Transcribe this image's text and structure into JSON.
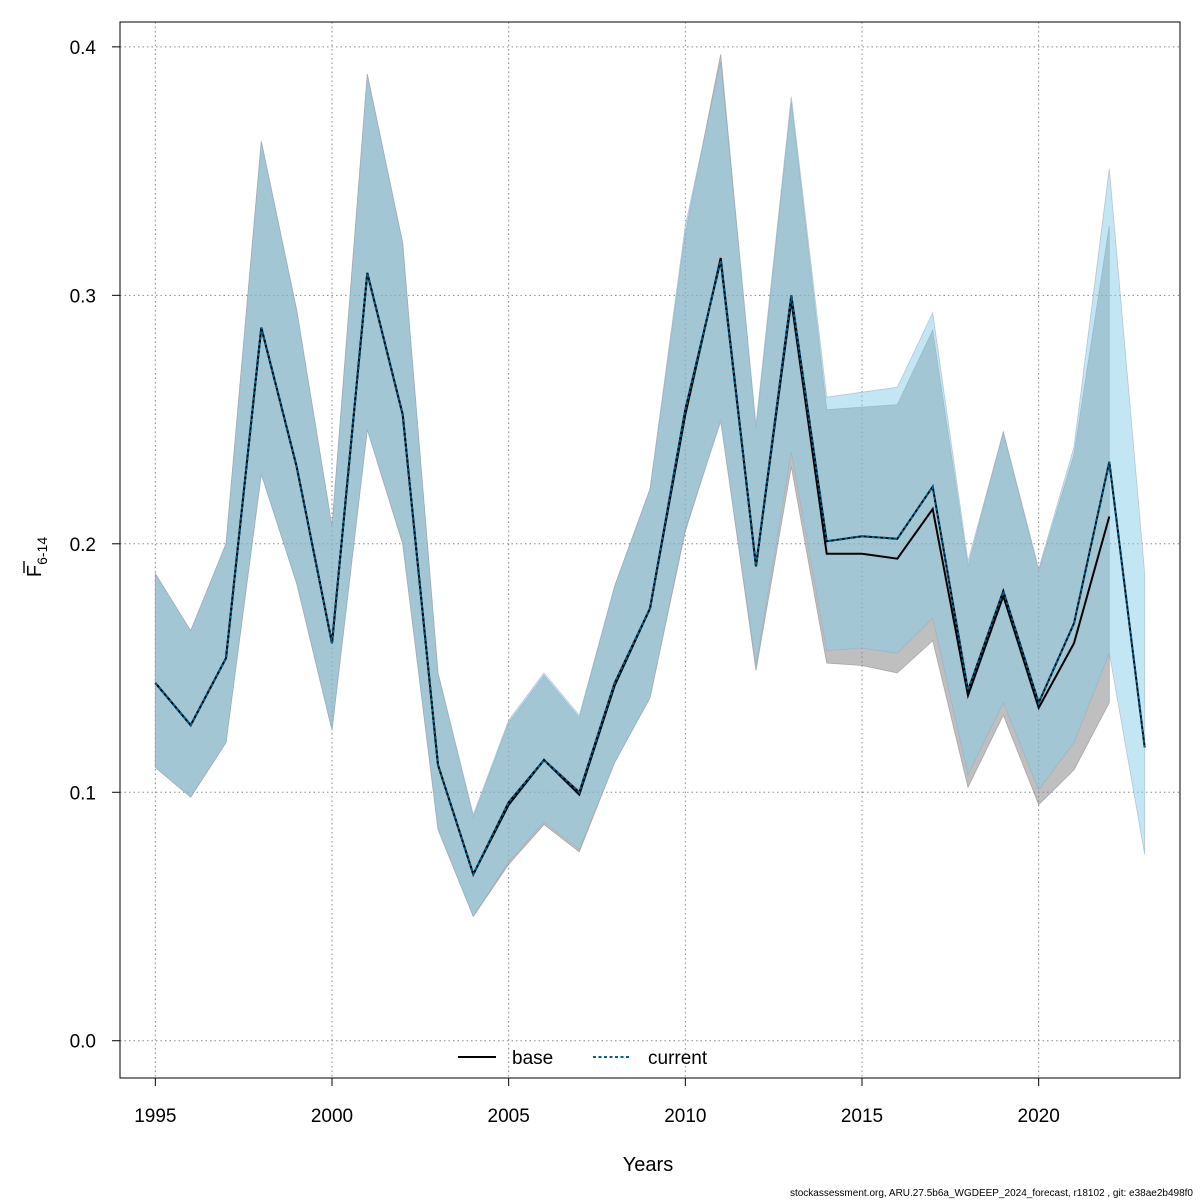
{
  "chart_data": {
    "type": "line",
    "xlabel": "Years",
    "ylabel": "F",
    "ylabel_subscript": "6-14",
    "xlim": [
      1994,
      2024
    ],
    "ylim": [
      -0.015,
      0.41
    ],
    "xticks": [
      1995,
      2000,
      2005,
      2010,
      2015,
      2020
    ],
    "yticks": [
      0.0,
      0.1,
      0.2,
      0.3,
      0.4
    ],
    "ytick_labels": [
      "0.0",
      "0.1",
      "0.2",
      "0.3",
      "0.4"
    ],
    "grid": true,
    "legend_position": "bottom-center",
    "colors": {
      "base_band": "#808080",
      "current_band": "#87ceeb",
      "base_line": "#000000",
      "current_line": "#00618f"
    },
    "series": [
      {
        "name": "base",
        "style": "solid",
        "x": [
          1995,
          1996,
          1997,
          1998,
          1999,
          2000,
          2001,
          2002,
          2003,
          2004,
          2005,
          2006,
          2007,
          2008,
          2009,
          2010,
          2011,
          2012,
          2013,
          2014,
          2015,
          2016,
          2017,
          2018,
          2019,
          2020,
          2021,
          2022
        ],
        "y": [
          0.144,
          0.127,
          0.154,
          0.287,
          0.231,
          0.16,
          0.309,
          0.252,
          0.111,
          0.067,
          0.095,
          0.113,
          0.099,
          0.143,
          0.174,
          0.252,
          0.315,
          0.191,
          0.298,
          0.196,
          0.196,
          0.194,
          0.214,
          0.139,
          0.179,
          0.134,
          0.16,
          0.211
        ],
        "lower": [
          0.11,
          0.098,
          0.12,
          0.228,
          0.184,
          0.125,
          0.246,
          0.2,
          0.085,
          0.05,
          0.071,
          0.087,
          0.076,
          0.112,
          0.138,
          0.205,
          0.25,
          0.149,
          0.231,
          0.152,
          0.151,
          0.148,
          0.161,
          0.102,
          0.131,
          0.095,
          0.109,
          0.136
        ],
        "upper": [
          0.188,
          0.165,
          0.2,
          0.362,
          0.294,
          0.207,
          0.389,
          0.321,
          0.148,
          0.09,
          0.128,
          0.147,
          0.13,
          0.183,
          0.222,
          0.325,
          0.397,
          0.246,
          0.378,
          0.254,
          0.255,
          0.256,
          0.286,
          0.191,
          0.245,
          0.189,
          0.236,
          0.328
        ]
      },
      {
        "name": "current",
        "style": "dashed",
        "x": [
          1995,
          1996,
          1997,
          1998,
          1999,
          2000,
          2001,
          2002,
          2003,
          2004,
          2005,
          2006,
          2007,
          2008,
          2009,
          2010,
          2011,
          2012,
          2013,
          2014,
          2015,
          2016,
          2017,
          2018,
          2019,
          2020,
          2021,
          2022,
          2023
        ],
        "y": [
          0.144,
          0.127,
          0.154,
          0.287,
          0.231,
          0.16,
          0.309,
          0.252,
          0.111,
          0.067,
          0.096,
          0.113,
          0.1,
          0.144,
          0.174,
          0.254,
          0.314,
          0.191,
          0.3,
          0.201,
          0.203,
          0.202,
          0.223,
          0.141,
          0.181,
          0.136,
          0.168,
          0.233,
          0.118
        ],
        "lower": [
          0.11,
          0.098,
          0.12,
          0.228,
          0.184,
          0.125,
          0.246,
          0.2,
          0.085,
          0.05,
          0.072,
          0.088,
          0.077,
          0.112,
          0.138,
          0.206,
          0.249,
          0.151,
          0.237,
          0.157,
          0.158,
          0.156,
          0.17,
          0.107,
          0.136,
          0.101,
          0.12,
          0.156,
          0.075
        ],
        "upper": [
          0.188,
          0.165,
          0.2,
          0.362,
          0.294,
          0.207,
          0.389,
          0.321,
          0.148,
          0.091,
          0.129,
          0.148,
          0.131,
          0.183,
          0.222,
          0.328,
          0.394,
          0.248,
          0.38,
          0.259,
          0.261,
          0.263,
          0.293,
          0.193,
          0.245,
          0.19,
          0.239,
          0.351,
          0.188
        ]
      }
    ]
  },
  "footer": {
    "text": "stockassessment.org, ARU.27.5b6a_WGDEEP_2024_forecast, r18102 , git: e38ae2b498f0"
  }
}
